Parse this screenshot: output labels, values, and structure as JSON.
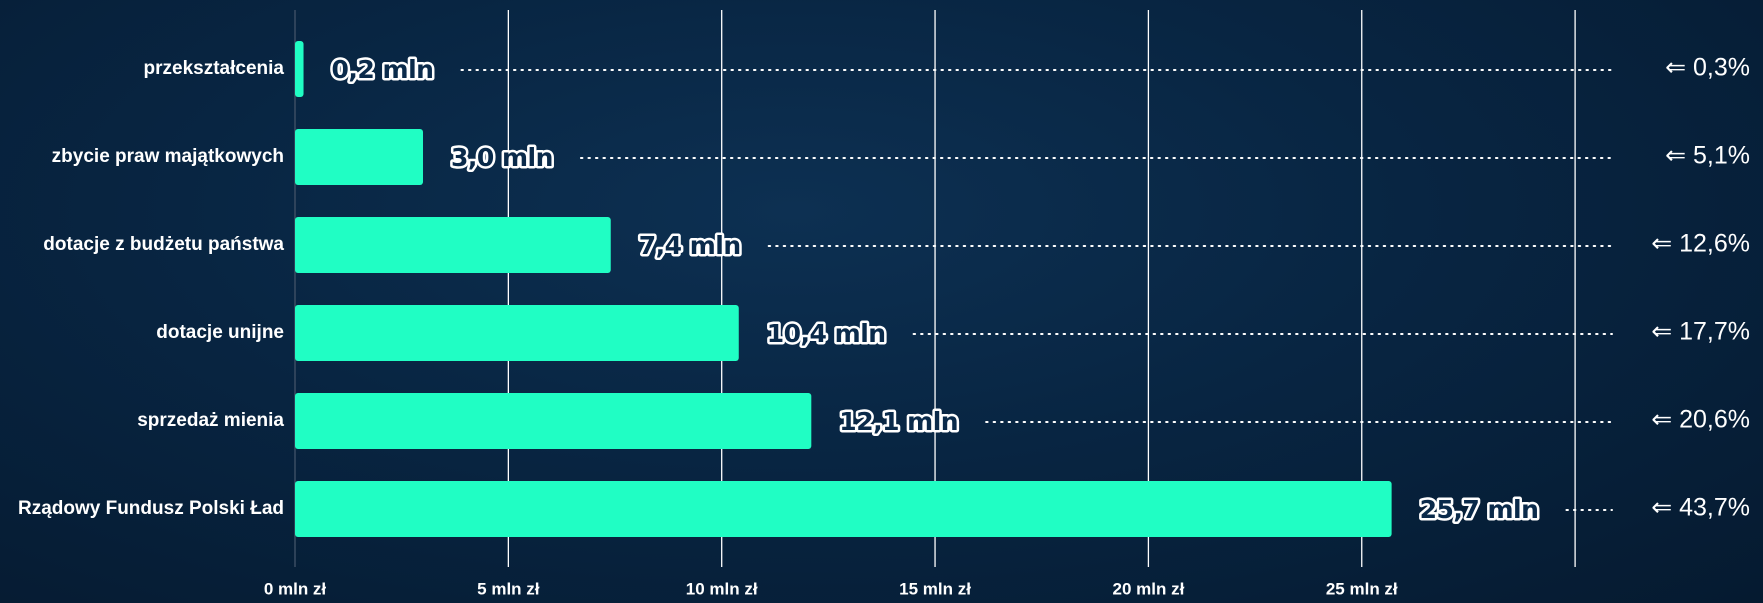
{
  "chart_data": {
    "type": "bar",
    "orientation": "horizontal",
    "categories": [
      "przekształcenia",
      "zbycie praw majątkowych",
      "dotacje z budżetu państwa",
      "dotacje unijne",
      "sprzedaż mienia",
      "Rządowy Fundusz Polski Ład"
    ],
    "values": [
      0.2,
      3.0,
      7.4,
      10.4,
      12.1,
      25.7
    ],
    "value_labels": [
      "0,2 mln",
      "3,0 mln",
      "7,4 mln",
      "10,4 mln",
      "12,1 mln",
      "25,7 mln"
    ],
    "share_labels": [
      "⇐ 0,3%",
      "⇐ 5,1%",
      "⇐ 12,6%",
      "⇐ 17,7%",
      "⇐ 20,6%",
      "⇐ 43,7%"
    ],
    "ticks": [
      0,
      5,
      10,
      15,
      20,
      25,
      30
    ],
    "tick_labels": [
      "0 mln zł",
      "5 mln zł",
      "10 mln zł",
      "15 mln zł",
      "20 mln zł",
      "25 mln zł",
      ""
    ],
    "xlim": [
      0,
      30
    ],
    "grid": true,
    "bar_color": "#20fec4",
    "title": "",
    "xlabel": "",
    "ylabel": ""
  }
}
